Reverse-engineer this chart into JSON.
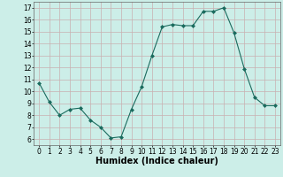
{
  "x": [
    0,
    1,
    2,
    3,
    4,
    5,
    6,
    7,
    8,
    9,
    10,
    11,
    12,
    13,
    14,
    15,
    16,
    17,
    18,
    19,
    20,
    21,
    22,
    23
  ],
  "y": [
    10.7,
    9.1,
    8.0,
    8.5,
    8.6,
    7.6,
    7.0,
    6.1,
    6.2,
    8.5,
    10.4,
    13.0,
    15.4,
    15.6,
    15.5,
    15.5,
    16.7,
    16.7,
    17.0,
    14.9,
    11.9,
    9.5,
    8.8,
    8.8
  ],
  "line_color": "#1a6b5e",
  "marker": "D",
  "marker_size": 2,
  "bg_color": "#cceee8",
  "grid_color": "#c9b0b0",
  "xlabel": "Humidex (Indice chaleur)",
  "xlim": [
    -0.5,
    23.5
  ],
  "ylim": [
    5.5,
    17.5
  ],
  "yticks": [
    6,
    7,
    8,
    9,
    10,
    11,
    12,
    13,
    14,
    15,
    16,
    17
  ],
  "xticks": [
    0,
    1,
    2,
    3,
    4,
    5,
    6,
    7,
    8,
    9,
    10,
    11,
    12,
    13,
    14,
    15,
    16,
    17,
    18,
    19,
    20,
    21,
    22,
    23
  ],
  "tick_fontsize": 5.5,
  "xlabel_fontsize": 7
}
